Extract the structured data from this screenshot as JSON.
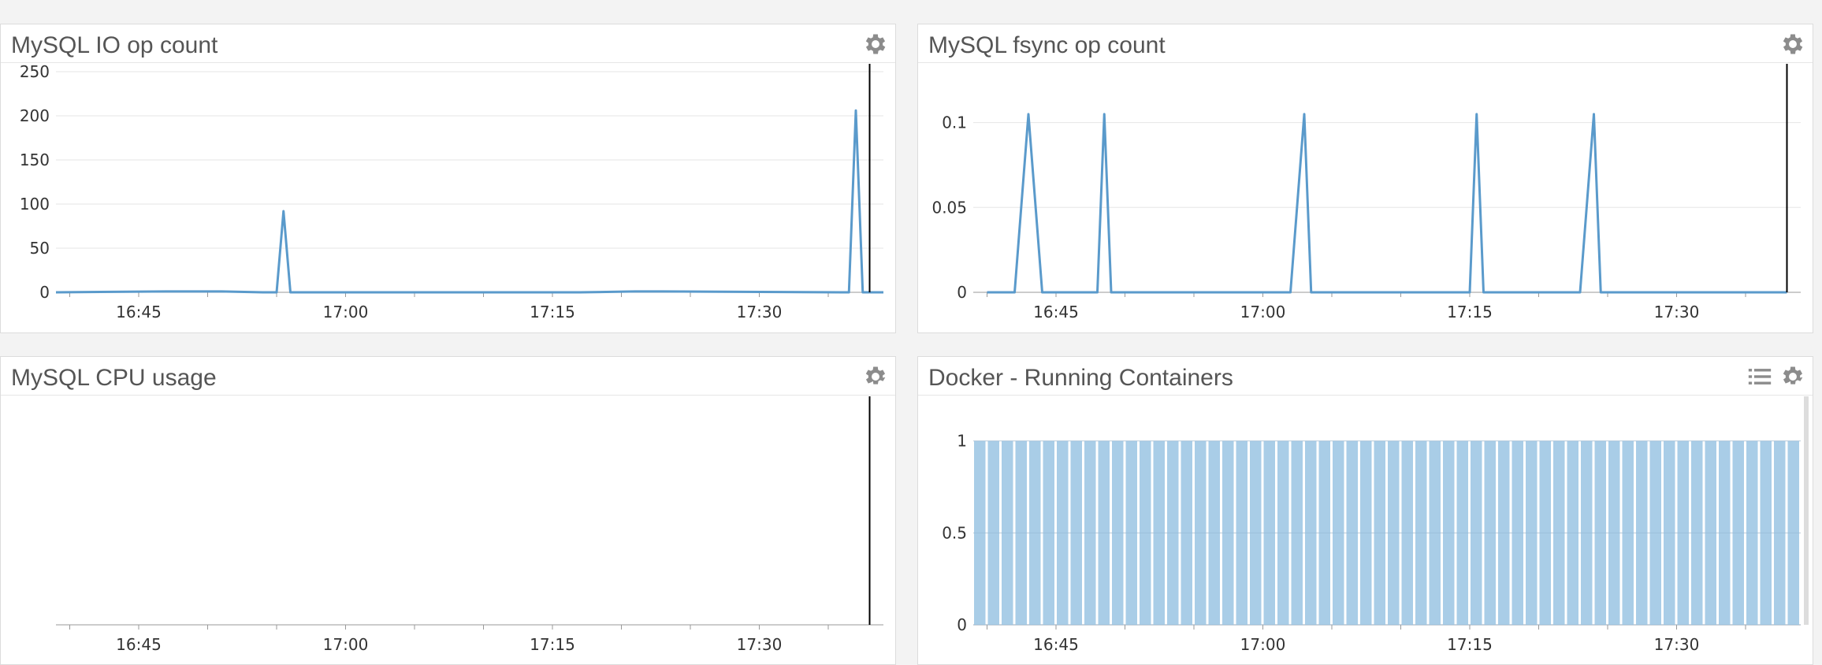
{
  "colors": {
    "line": "#5a9acb",
    "bar": "#a9cde7",
    "grid": "#e6e6e6",
    "axis": "#999999",
    "cursor": "#000000"
  },
  "widgets": [
    {
      "title": "MySQL IO op count",
      "icons": [
        "gear-icon"
      ]
    },
    {
      "title": "MySQL fsync op count",
      "icons": [
        "gear-icon"
      ]
    },
    {
      "title": "MySQL CPU usage",
      "icons": [
        "gear-icon"
      ]
    },
    {
      "title": "Docker - Running Containers",
      "icons": [
        "list-icon",
        "gear-icon"
      ]
    }
  ],
  "chart_data": [
    {
      "type": "line",
      "title": "MySQL IO op count",
      "x_range": [
        "16:39",
        "17:39"
      ],
      "x_ticks": [
        "16:45",
        "17:00",
        "17:15",
        "17:30"
      ],
      "y_range": [
        0,
        250
      ],
      "y_ticks": [
        "0",
        "50",
        "100",
        "150",
        "200",
        "250"
      ],
      "grid": true,
      "series": [
        {
          "x": [
            "16:39",
            "16:47",
            "16:51",
            "16:54",
            "16:55",
            "16:55.5",
            "16:56",
            "17:00",
            "17:13",
            "17:17",
            "17:21",
            "17:23",
            "17:36",
            "17:36.5",
            "17:37",
            "17:37.5",
            "17:38",
            "17:39"
          ],
          "y": [
            0,
            1,
            1,
            0,
            0,
            92,
            0,
            0,
            0,
            0,
            1,
            1,
            0,
            0,
            206,
            0,
            0,
            0
          ]
        }
      ],
      "cursor_x": "17:38"
    },
    {
      "type": "line",
      "title": "MySQL fsync op count",
      "x_range": [
        "16:39",
        "17:39"
      ],
      "x_ticks": [
        "16:45",
        "17:00",
        "17:15",
        "17:30"
      ],
      "y_range": [
        0,
        0.13
      ],
      "y_ticks": [
        "0",
        "0.05",
        "0.1"
      ],
      "grid": true,
      "series": [
        {
          "x": [
            "16:40",
            "16:42",
            "16:43",
            "16:44",
            "16:48",
            "16:48.5",
            "16:49",
            "17:02",
            "17:03",
            "17:03.5",
            "17:15",
            "17:15.5",
            "17:16",
            "17:23",
            "17:24",
            "17:24.5",
            "17:38"
          ],
          "y": [
            0,
            0,
            0.105,
            0,
            0,
            0.105,
            0,
            0,
            0.105,
            0,
            0,
            0.105,
            0,
            0,
            0.105,
            0,
            0
          ]
        }
      ],
      "cursor_x": "17:38"
    },
    {
      "type": "line",
      "title": "MySQL CPU usage",
      "x_range": [
        "16:39",
        "17:39"
      ],
      "x_ticks": [
        "16:45",
        "17:00",
        "17:15",
        "17:30"
      ],
      "y_range": [
        0,
        1
      ],
      "y_ticks": [],
      "grid": false,
      "series": [],
      "cursor_x": "17:38"
    },
    {
      "type": "bar",
      "title": "Docker - Running Containers",
      "x_range": [
        "16:39",
        "17:39"
      ],
      "x_ticks": [
        "16:45",
        "17:00",
        "17:15",
        "17:30"
      ],
      "y_range": [
        0,
        1.2
      ],
      "y_ticks": [
        "0",
        "0.5",
        "1"
      ],
      "grid": true,
      "bar_count": 60,
      "bar_value": 1
    }
  ]
}
